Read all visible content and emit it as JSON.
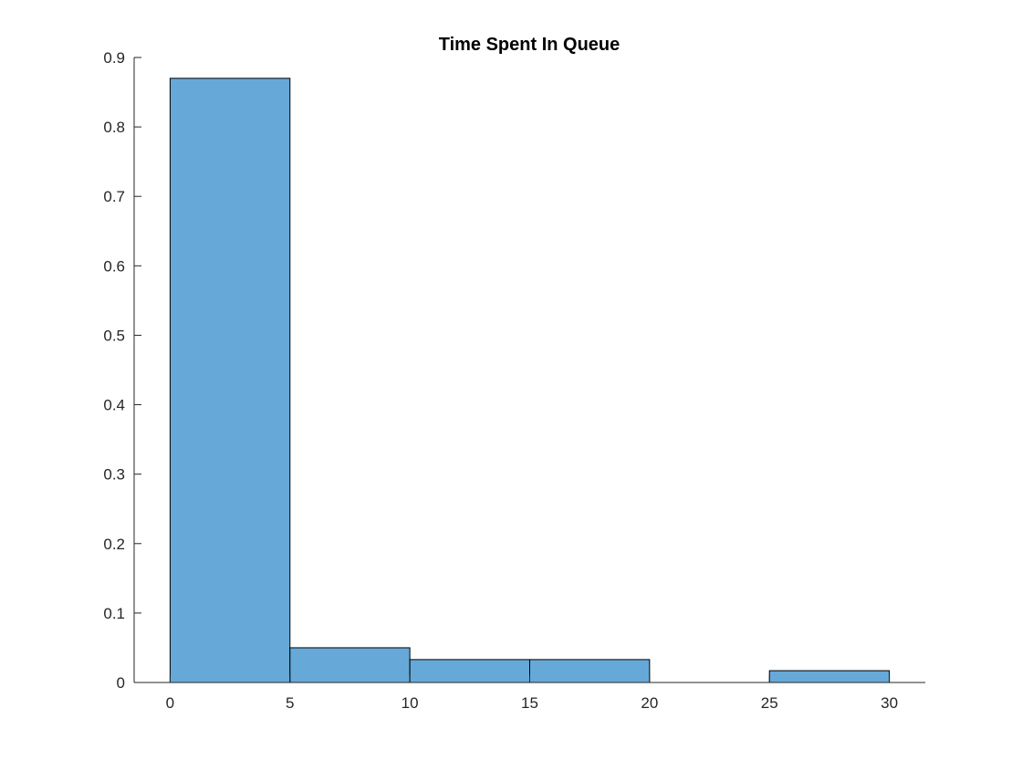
{
  "chart_data": {
    "type": "bar",
    "title": "Time Spent In Queue",
    "xlabel": "",
    "ylabel": "",
    "bin_edges": [
      0,
      5,
      10,
      15,
      20,
      25,
      30
    ],
    "values": [
      0.87,
      0.05,
      0.033,
      0.033,
      0,
      0.017
    ],
    "xlim": [
      -1.5,
      31.5
    ],
    "ylim": [
      0,
      0.9
    ],
    "xticks": [
      0,
      5,
      10,
      15,
      20,
      25,
      30
    ],
    "yticks": [
      0,
      0.1,
      0.2,
      0.3,
      0.4,
      0.5,
      0.6,
      0.7,
      0.8,
      0.9
    ],
    "xtick_labels": [
      "0",
      "5",
      "10",
      "15",
      "20",
      "25",
      "30"
    ],
    "ytick_labels": [
      "0",
      "0.1",
      "0.2",
      "0.3",
      "0.4",
      "0.5",
      "0.6",
      "0.7",
      "0.8",
      "0.9"
    ],
    "grid": false,
    "colors": {
      "bar_fill": "#66a9d8",
      "bar_edge": "#000000",
      "axis": "#262626"
    }
  }
}
